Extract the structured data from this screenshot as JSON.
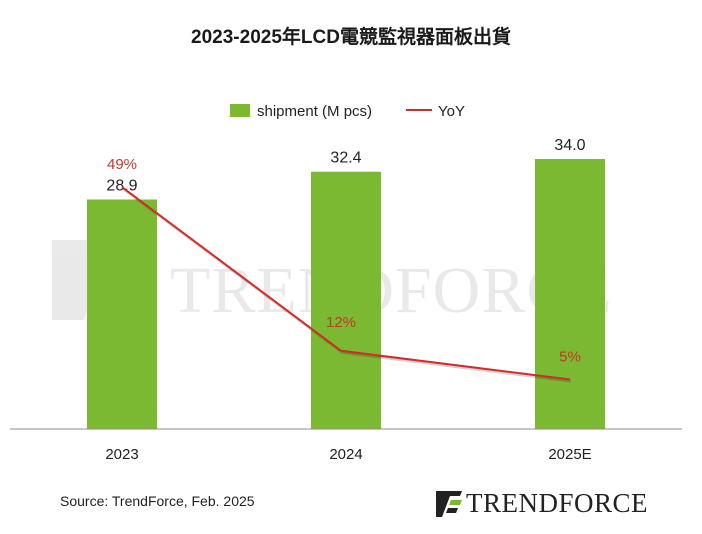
{
  "chart_data": {
    "type": "bar",
    "title": "2023-2025年LCD電競監視器面板出貨",
    "categories": [
      "2023",
      "2024",
      "2025E"
    ],
    "series": [
      {
        "name": "shipment (M pcs)",
        "type": "bar",
        "values": [
          28.9,
          32.4,
          34.0
        ],
        "labels": [
          "28.9",
          "32.4",
          "34.0"
        ],
        "color": "#7cb932"
      },
      {
        "name": "YoY",
        "type": "line",
        "values": [
          49,
          12,
          5
        ],
        "labels": [
          "49%",
          "12%",
          "5%"
        ],
        "unit": "%",
        "color": "#d42a2a"
      }
    ],
    "legend": "top-center",
    "grid": false
  },
  "source": "Source: TrendForce, Feb. 2025",
  "watermark": "TRENDFORCE",
  "logo": {
    "text": "TRENDFORCE"
  },
  "colors": {
    "bar": "#7cb932",
    "line": "#d42a2a",
    "line_label": "#c0392b",
    "axis": "#8c8c8c",
    "text": "#222222"
  }
}
